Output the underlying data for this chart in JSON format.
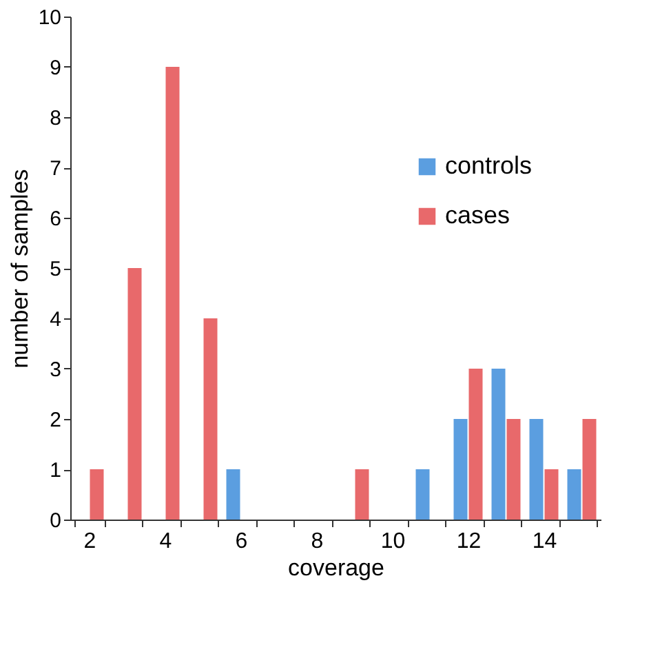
{
  "chart_data": {
    "type": "bar",
    "xlabel": "coverage",
    "ylabel": "number of samples",
    "categories": [
      "2",
      null,
      "4",
      null,
      "6",
      null,
      "8",
      null,
      "10",
      null,
      "12",
      null,
      "14",
      null
    ],
    "series": [
      {
        "name": "controls",
        "color": "#5b9ee0",
        "values": [
          0,
          0,
          0,
          0,
          1,
          0,
          0,
          0,
          0,
          1,
          2,
          3,
          2,
          1
        ]
      },
      {
        "name": "cases",
        "color": "#e8696b",
        "values": [
          1,
          5,
          9,
          4,
          0,
          0,
          0,
          1,
          0,
          0,
          3,
          2,
          1,
          2
        ]
      }
    ],
    "ylim": [
      0,
      10
    ],
    "yticks": [
      0,
      1,
      2,
      3,
      4,
      5,
      6,
      7,
      8,
      9,
      10
    ],
    "grid": false,
    "legend": "right"
  }
}
